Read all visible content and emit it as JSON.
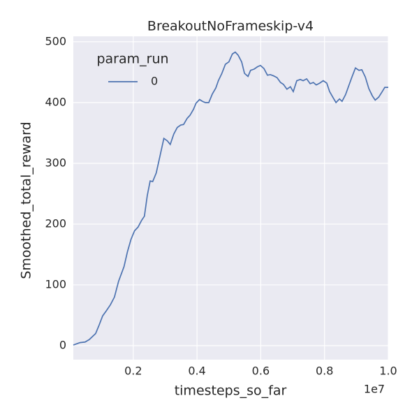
{
  "chart_data": {
    "type": "line",
    "title": "BreakoutNoFrameskip-v4",
    "x_label": "timesteps_so_far",
    "y_label": "Smoothed_total_reward",
    "x_offset_label": "1e7",
    "legend_title": "param_run",
    "legend_loc": "upper left",
    "grid": true,
    "x": [
      0.012,
      0.033,
      0.049,
      0.062,
      0.082,
      0.093,
      0.104,
      0.115,
      0.128,
      0.141,
      0.154,
      0.171,
      0.182,
      0.193,
      0.204,
      0.215,
      0.226,
      0.235,
      0.244,
      0.253,
      0.261,
      0.272,
      0.283,
      0.296,
      0.307,
      0.316,
      0.327,
      0.338,
      0.349,
      0.358,
      0.369,
      0.378,
      0.389,
      0.397,
      0.408,
      0.417,
      0.426,
      0.437,
      0.448,
      0.459,
      0.467,
      0.478,
      0.489,
      0.5,
      0.511,
      0.52,
      0.529,
      0.54,
      0.549,
      0.56,
      0.568,
      0.579,
      0.59,
      0.599,
      0.61,
      0.621,
      0.63,
      0.64,
      0.651,
      0.662,
      0.671,
      0.682,
      0.693,
      0.702,
      0.713,
      0.724,
      0.733,
      0.744,
      0.755,
      0.765,
      0.774,
      0.785,
      0.796,
      0.807,
      0.816,
      0.827,
      0.836,
      0.847,
      0.855,
      0.866,
      0.877,
      0.886,
      0.897,
      0.908,
      0.917,
      0.928,
      0.939,
      0.95,
      0.959,
      0.97,
      0.981,
      0.989,
      1.0
    ],
    "series": [
      {
        "name": "0",
        "color": "#4c72b0",
        "values": [
          1,
          5,
          6,
          10,
          20,
          34,
          49,
          57,
          67,
          80,
          106,
          130,
          155,
          175,
          189,
          195,
          206,
          213,
          247,
          271,
          270,
          284,
          310,
          341,
          337,
          331,
          348,
          359,
          363,
          364,
          374,
          379,
          389,
          399,
          405,
          402,
          400,
          400,
          414,
          424,
          436,
          448,
          463,
          467,
          480,
          483,
          478,
          467,
          448,
          443,
          453,
          455,
          459,
          461,
          456,
          445,
          446,
          444,
          441,
          433,
          430,
          422,
          426,
          418,
          436,
          438,
          436,
          439,
          431,
          433,
          429,
          432,
          436,
          432,
          418,
          408,
          400,
          406,
          402,
          413,
          429,
          442,
          457,
          453,
          454,
          442,
          423,
          411,
          404,
          409,
          418,
          425,
          425
        ]
      }
    ],
    "xlim": [
      0.012,
      1.0
    ],
    "xticks": [
      0.2,
      0.4,
      0.6,
      0.8,
      {
        "value": 1,
        "label": "1.0"
      }
    ],
    "ylim": [
      -23,
      509
    ],
    "yticks": [
      0,
      100,
      200,
      300,
      400,
      500
    ]
  }
}
